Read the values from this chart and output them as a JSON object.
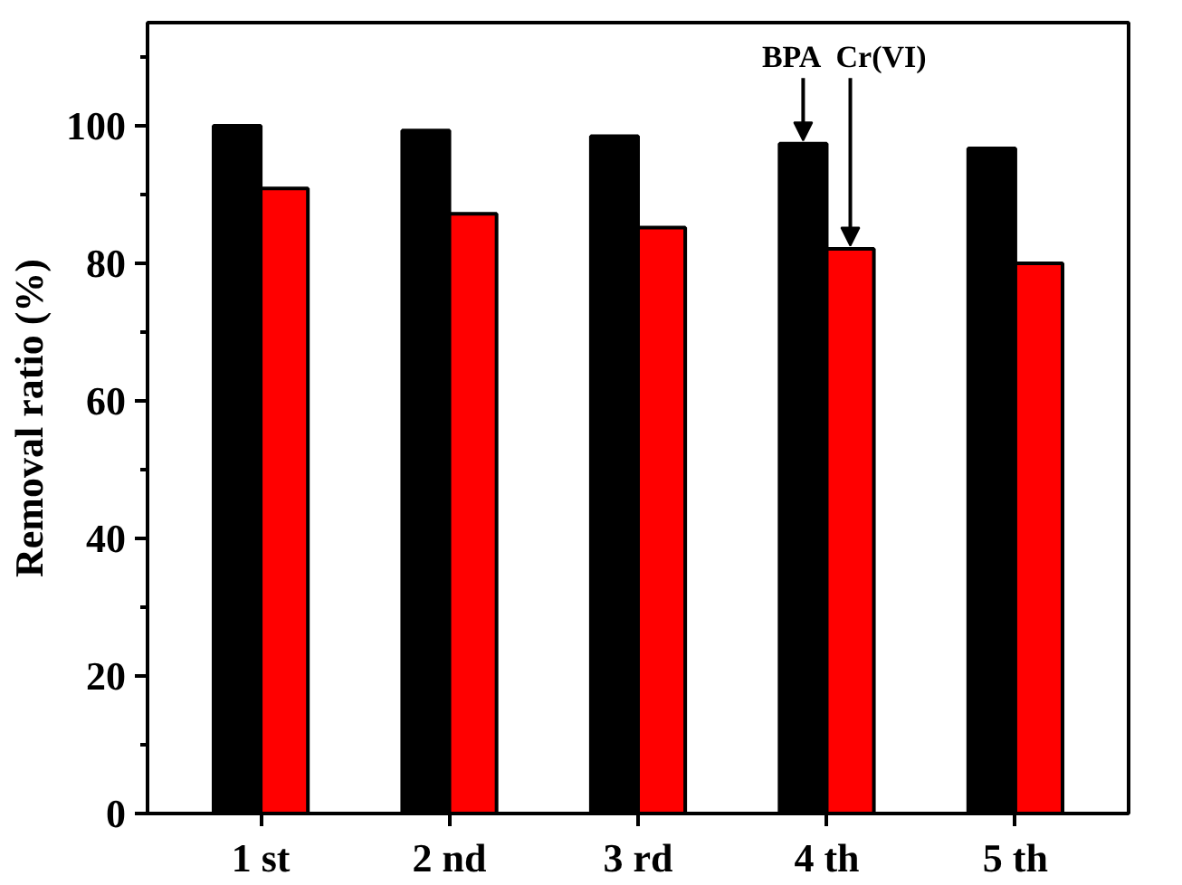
{
  "chart_data": {
    "type": "bar",
    "ylabel": "Removal ratio (%)",
    "categories": [
      "1 st",
      "2 nd",
      "3 rd",
      "4 th",
      "5 th"
    ],
    "series": [
      {
        "name": "BPA",
        "color": "#000000",
        "values": [
          100,
          99.3,
          98.5,
          97.4,
          96.7
        ]
      },
      {
        "name": "Cr(VI)",
        "color": "#ff0000",
        "values": [
          90.9,
          87.2,
          85.2,
          82.1,
          80
        ]
      }
    ],
    "ylim": [
      0,
      115
    ],
    "yticks": [
      0,
      20,
      40,
      60,
      80,
      100
    ],
    "grid": false
  }
}
